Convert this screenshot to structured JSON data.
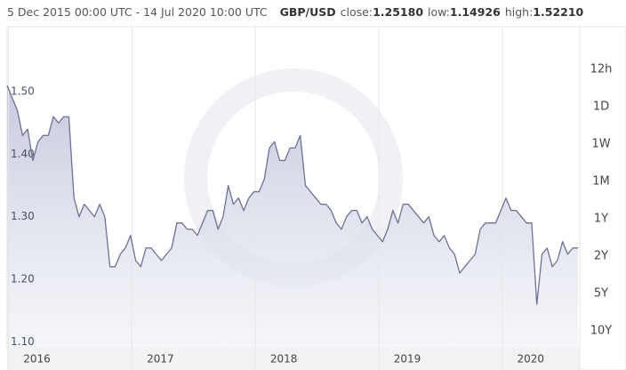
{
  "header": {
    "range": "5 Dec 2015 00:00 UTC - 14 Jul 2020 10:00 UTC",
    "pair": "GBP/USD",
    "close_label": "close:",
    "close": "1.25180",
    "low_label": "low:",
    "low": "1.14926",
    "high_label": "high:",
    "high": "1.52210"
  },
  "periods": [
    "12h",
    "1D",
    "1W",
    "1M",
    "1Y",
    "2Y",
    "5Y",
    "10Y"
  ],
  "chart_data": {
    "type": "area",
    "categories": [
      null,
      null,
      "2016",
      null,
      null,
      null,
      null,
      null,
      null,
      null,
      null,
      null,
      null,
      null,
      null,
      null,
      null,
      null,
      null,
      null,
      null,
      null,
      null,
      null,
      null,
      null,
      "2017",
      null,
      null,
      null,
      null,
      null,
      null,
      null,
      null,
      null,
      null,
      null,
      null,
      null,
      null,
      null,
      null,
      null,
      null,
      null,
      null,
      null,
      null,
      null,
      "2018",
      null,
      null,
      null,
      null,
      null,
      null,
      null,
      null,
      null,
      null,
      null,
      null,
      null,
      null,
      null,
      null,
      null,
      null,
      null,
      null,
      null,
      null,
      null,
      "2019",
      null,
      null,
      null,
      null,
      null,
      null,
      null,
      null,
      null,
      null,
      null,
      null,
      null,
      null,
      null,
      null,
      null,
      null,
      null,
      null,
      null,
      null,
      null,
      "2020",
      null,
      null,
      null,
      null,
      null,
      null,
      null,
      null,
      null,
      null,
      null,
      null,
      null
    ],
    "values": [
      1.51,
      1.49,
      1.47,
      1.43,
      1.44,
      1.39,
      1.42,
      1.43,
      1.43,
      1.46,
      1.45,
      1.46,
      1.46,
      1.33,
      1.3,
      1.32,
      1.31,
      1.3,
      1.32,
      1.3,
      1.22,
      1.22,
      1.24,
      1.25,
      1.27,
      1.23,
      1.22,
      1.25,
      1.25,
      1.24,
      1.23,
      1.24,
      1.25,
      1.29,
      1.29,
      1.28,
      1.28,
      1.27,
      1.29,
      1.31,
      1.31,
      1.28,
      1.3,
      1.35,
      1.32,
      1.33,
      1.31,
      1.33,
      1.34,
      1.34,
      1.36,
      1.41,
      1.42,
      1.39,
      1.39,
      1.41,
      1.41,
      1.43,
      1.35,
      1.34,
      1.33,
      1.32,
      1.32,
      1.31,
      1.29,
      1.28,
      1.3,
      1.31,
      1.31,
      1.29,
      1.3,
      1.28,
      1.27,
      1.26,
      1.28,
      1.31,
      1.29,
      1.32,
      1.32,
      1.31,
      1.3,
      1.29,
      1.3,
      1.27,
      1.26,
      1.27,
      1.25,
      1.24,
      1.21,
      1.22,
      1.23,
      1.24,
      1.28,
      1.29,
      1.29,
      1.29,
      1.31,
      1.33,
      1.31,
      1.31,
      1.3,
      1.29,
      1.29,
      1.16,
      1.24,
      1.25,
      1.22,
      1.23,
      1.26,
      1.24,
      1.25,
      1.25
    ],
    "color": "#6d7295",
    "ylim": [
      1.089,
      1.604
    ],
    "yticks": [
      {
        "value": 1.1,
        "label": "1.10"
      },
      {
        "value": 1.2,
        "label": "1.20"
      },
      {
        "value": 1.3,
        "label": "1.30"
      },
      {
        "value": 1.4,
        "label": "1.40"
      },
      {
        "value": 1.5,
        "label": "1.50"
      }
    ],
    "grid": false
  }
}
